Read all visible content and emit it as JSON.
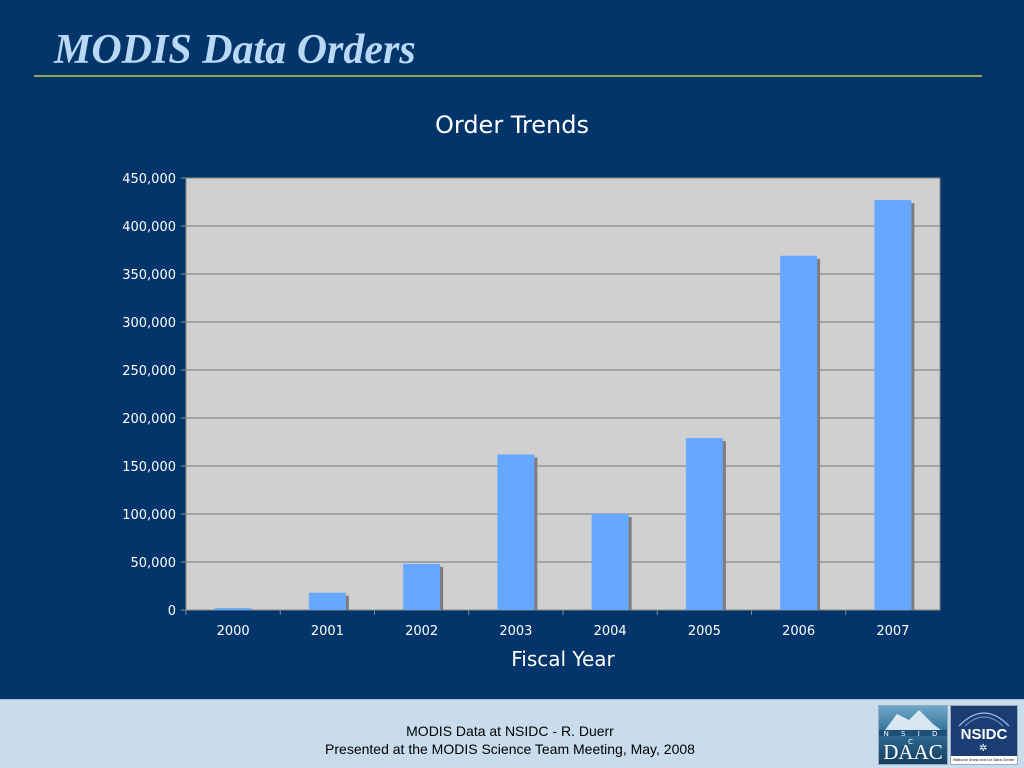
{
  "slide": {
    "title": "MODIS Data Orders"
  },
  "footer": {
    "line1": "MODIS Data at NSIDC - R. Duerr",
    "line2": "Presented at the MODIS Science Team Meeting, May, 2008"
  },
  "logos": {
    "daac_small": "N S I D C",
    "daac_main": "DAAC",
    "nsidc_main": "NSIDC",
    "nsidc_sub": "National Snow and Ice Data Center"
  },
  "colors": {
    "background": "#04356a",
    "title": "#b8d8f5",
    "plot_area": "#d0d0d0",
    "bar": "#66a8ff",
    "bar_shadow": "#7d7d7d",
    "footer": "#c8dcec",
    "rule": "#8fa84a"
  },
  "chart_data": {
    "type": "bar",
    "title": "Order Trends",
    "xlabel": "Fiscal Year",
    "ylabel": "",
    "categories": [
      "2000",
      "2001",
      "2002",
      "2003",
      "2004",
      "2005",
      "2006",
      "2007"
    ],
    "values": [
      2000,
      18000,
      48000,
      162000,
      100000,
      179000,
      369000,
      427000
    ],
    "ylim": [
      0,
      450000
    ],
    "yticks": [
      0,
      50000,
      100000,
      150000,
      200000,
      250000,
      300000,
      350000,
      400000,
      450000
    ],
    "ytick_labels": [
      "0",
      "50,000",
      "100,000",
      "150,000",
      "200,000",
      "250,000",
      "300,000",
      "350,000",
      "400,000",
      "450,000"
    ],
    "grid": true,
    "legend": "none"
  }
}
